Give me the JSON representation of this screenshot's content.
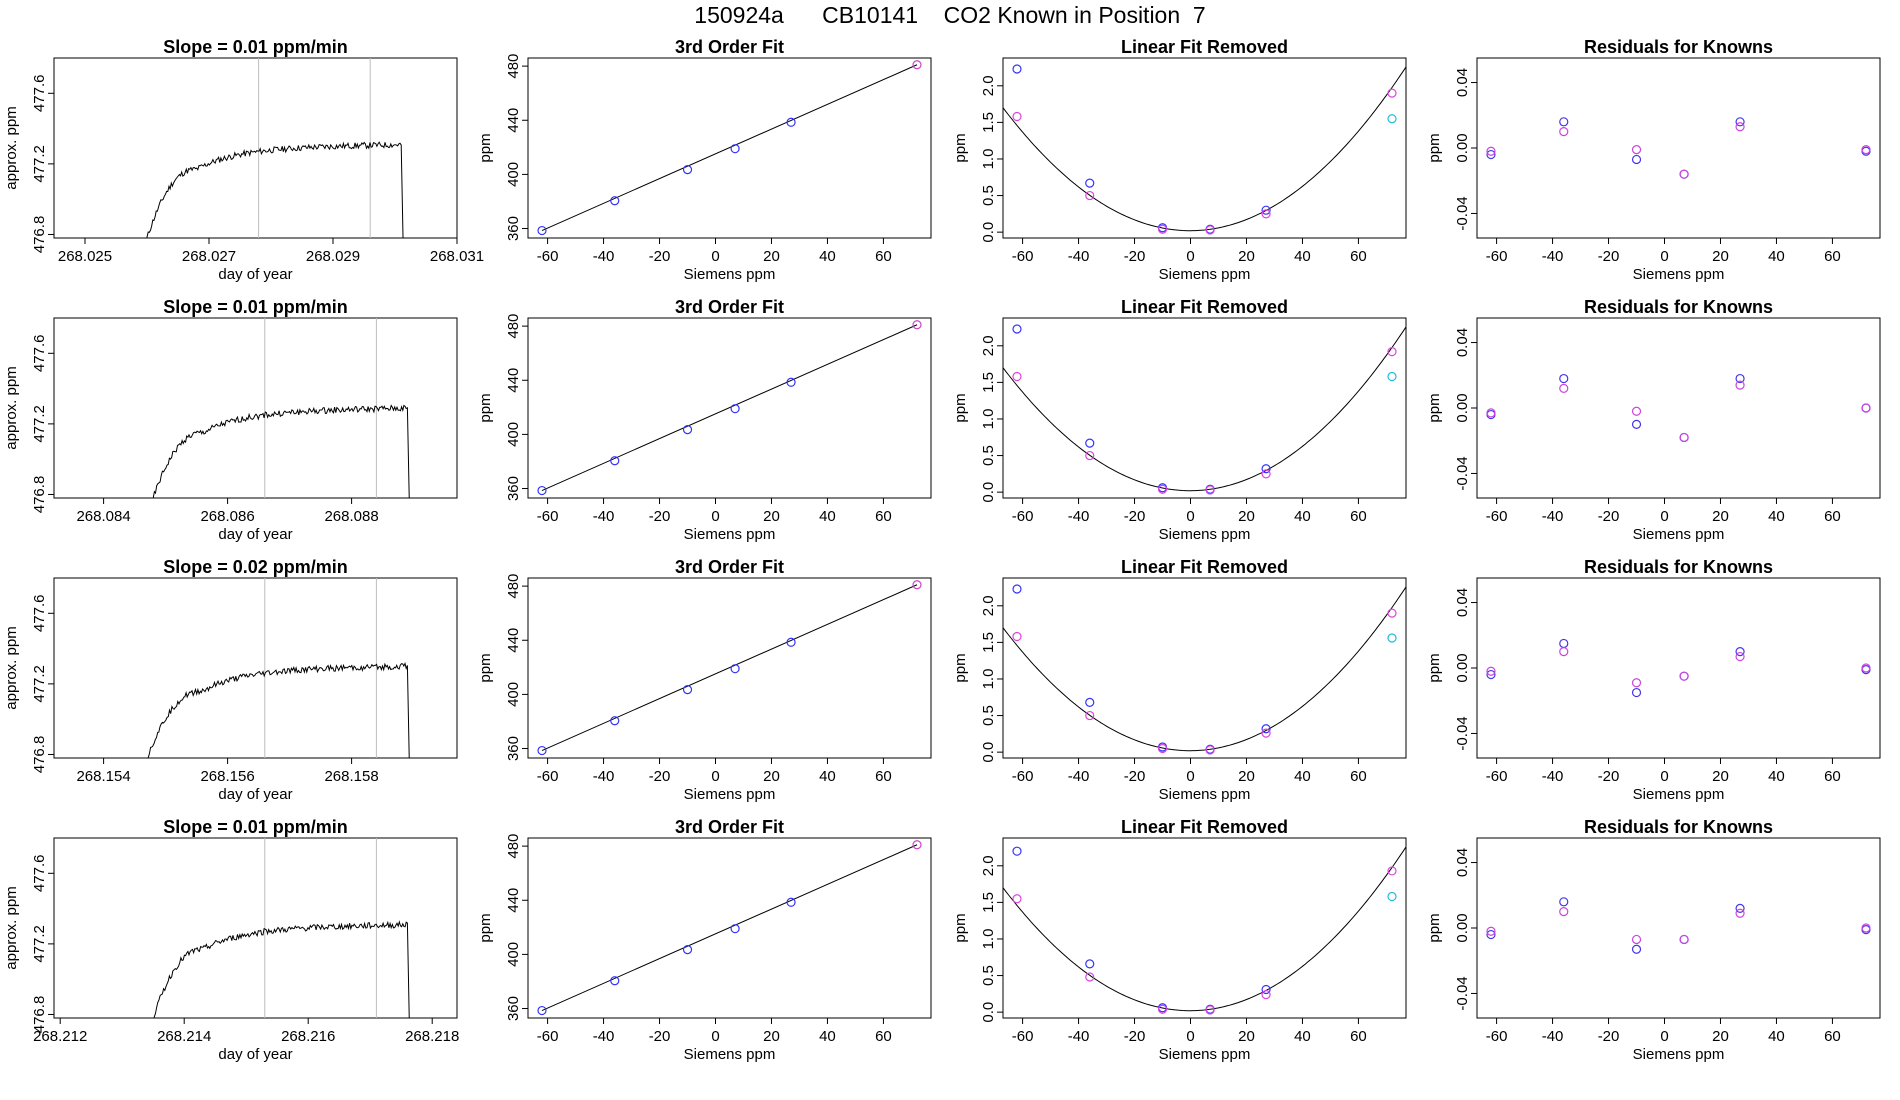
{
  "main_title": "150924a      CB10141    CO2 Known in Position  7",
  "chart_data": [
    {
      "id": "r1c1",
      "type": "line",
      "title": "Slope =  0.01  ppm/min",
      "xlabel": "day of year",
      "ylabel": "approx. ppm",
      "xlim": [
        268.0245,
        268.031
      ],
      "ylim": [
        476.78,
        477.8
      ],
      "xticks": [
        268.025,
        268.027,
        268.029,
        268.031
      ],
      "xtick_labels": [
        "268.025",
        "268.027",
        "268.029",
        "268.031"
      ],
      "yticks": [
        476.8,
        477.2,
        477.6
      ],
      "ytick_labels": [
        "476.8",
        "477.2",
        "477.6"
      ],
      "vlines": [
        268.0278,
        268.0296
      ],
      "rise_start": 268.026,
      "rise_end": 268.0268,
      "plateau_end": 268.0301,
      "start_value": 476.78,
      "plateau_value": 477.29
    },
    {
      "id": "r1c2",
      "type": "line",
      "title": "3rd Order Fit",
      "xlabel": "Siemens ppm",
      "ylabel": "ppm",
      "xlim": [
        -67,
        77
      ],
      "ylim": [
        353,
        486
      ],
      "xticks": [
        -60,
        -40,
        -20,
        0,
        20,
        40,
        60
      ],
      "xtick_labels": [
        "-60",
        "-40",
        "-20",
        "0",
        "20",
        "40",
        "60"
      ],
      "yticks": [
        360,
        400,
        440,
        480
      ],
      "ytick_labels": [
        "360",
        "400",
        "440",
        "480"
      ],
      "points_x": [
        -62,
        -36,
        -10,
        7,
        27,
        72
      ],
      "points_y": [
        358.5,
        380.5,
        403.5,
        419,
        438.5,
        481
      ],
      "point_colors": [
        "#3333ff",
        "#3333ff",
        "#3333ff",
        "#3333ff",
        "#3333ff",
        "#cc44cc"
      ]
    },
    {
      "id": "r1c3",
      "type": "scatter",
      "title": "Linear Fit Removed",
      "xlabel": "Siemens ppm",
      "ylabel": "ppm",
      "xlim": [
        -67,
        77
      ],
      "ylim": [
        -0.08,
        2.38
      ],
      "xticks": [
        -60,
        -40,
        -20,
        0,
        20,
        40,
        60
      ],
      "xtick_labels": [
        "-60",
        "-40",
        "-20",
        "0",
        "20",
        "40",
        "60"
      ],
      "yticks": [
        0,
        0.5,
        1,
        1.5,
        2
      ],
      "ytick_labels": [
        "0.0",
        "0.5",
        "1.0",
        "1.5",
        "2.0"
      ],
      "curve_coeffs": [
        0.02,
        0.00011,
        0.000376
      ],
      "series": [
        {
          "name": "blue",
          "color": "#3333ff",
          "x": [
            -62,
            -36,
            -10,
            7,
            27
          ],
          "y": [
            2.23,
            0.67,
            0.06,
            0.04,
            0.3
          ]
        },
        {
          "name": "magenta",
          "color": "#dd44dd",
          "x": [
            -62,
            -36,
            -10,
            7,
            27,
            72
          ],
          "y": [
            1.58,
            0.5,
            0.04,
            0.03,
            0.25,
            1.9
          ]
        },
        {
          "name": "cyan",
          "color": "#22bbdd",
          "x": [
            72
          ],
          "y": [
            1.55
          ]
        }
      ]
    },
    {
      "id": "r1c4",
      "type": "scatter",
      "title": "Residuals for Knowns",
      "xlabel": "Siemens ppm",
      "ylabel": "ppm",
      "xlim": [
        -67,
        77
      ],
      "ylim": [
        -0.055,
        0.055
      ],
      "xticks": [
        -60,
        -40,
        -20,
        0,
        20,
        40,
        60
      ],
      "xtick_labels": [
        "-60",
        "-40",
        "-20",
        "0",
        "20",
        "40",
        "60"
      ],
      "yticks": [
        -0.04,
        0,
        0.04
      ],
      "ytick_labels": [
        "-0.04",
        "0.00",
        "0.04"
      ],
      "series": [
        {
          "name": "blue",
          "color": "#4433ee",
          "x": [
            -62,
            -36,
            -10,
            7,
            27,
            72
          ],
          "y": [
            -0.004,
            0.016,
            -0.007,
            -0.016,
            0.016,
            -0.002
          ]
        },
        {
          "name": "magenta",
          "color": "#cc44dd",
          "x": [
            -62,
            -36,
            -10,
            7,
            27,
            72
          ],
          "y": [
            -0.002,
            0.01,
            -0.001,
            -0.016,
            0.013,
            -0.001
          ]
        }
      ]
    },
    {
      "id": "r2c1",
      "type": "line",
      "title": "Slope =  0.01  ppm/min",
      "xlabel": "day of year",
      "ylabel": "approx. ppm",
      "xlim": [
        268.0832,
        268.0897
      ],
      "ylim": [
        476.78,
        477.8
      ],
      "xticks": [
        268.084,
        268.086,
        268.088
      ],
      "xtick_labels": [
        "268.084",
        "268.086",
        "268.088"
      ],
      "yticks": [
        476.8,
        477.2,
        477.6
      ],
      "ytick_labels": [
        "476.8",
        "477.2",
        "477.6"
      ],
      "vlines": [
        268.0866,
        268.0884
      ],
      "rise_start": 268.0848,
      "rise_end": 268.0856,
      "plateau_end": 268.0889,
      "start_value": 476.78,
      "plateau_value": 477.27
    },
    {
      "id": "r2c2",
      "type": "line",
      "title": "3rd Order Fit",
      "xlabel": "Siemens ppm",
      "ylabel": "ppm",
      "xlim": [
        -67,
        77
      ],
      "ylim": [
        353,
        486
      ],
      "xticks": [
        -60,
        -40,
        -20,
        0,
        20,
        40,
        60
      ],
      "xtick_labels": [
        "-60",
        "-40",
        "-20",
        "0",
        "20",
        "40",
        "60"
      ],
      "yticks": [
        360,
        400,
        440,
        480
      ],
      "ytick_labels": [
        "360",
        "400",
        "440",
        "480"
      ],
      "points_x": [
        -62,
        -36,
        -10,
        7,
        27,
        72
      ],
      "points_y": [
        358.5,
        380.5,
        403.5,
        419,
        438.5,
        481
      ],
      "point_colors": [
        "#3333ff",
        "#3333ff",
        "#3333ff",
        "#3333ff",
        "#3333ff",
        "#cc44cc"
      ]
    },
    {
      "id": "r2c3",
      "type": "scatter",
      "title": "Linear Fit Removed",
      "xlabel": "Siemens ppm",
      "ylabel": "ppm",
      "xlim": [
        -67,
        77
      ],
      "ylim": [
        -0.08,
        2.38
      ],
      "xticks": [
        -60,
        -40,
        -20,
        0,
        20,
        40,
        60
      ],
      "xtick_labels": [
        "-60",
        "-40",
        "-20",
        "0",
        "20",
        "40",
        "60"
      ],
      "yticks": [
        0,
        0.5,
        1,
        1.5,
        2
      ],
      "ytick_labels": [
        "0.0",
        "0.5",
        "1.0",
        "1.5",
        "2.0"
      ],
      "curve_coeffs": [
        0.02,
        0.00011,
        0.000376
      ],
      "series": [
        {
          "name": "blue",
          "color": "#3333ff",
          "x": [
            -62,
            -36,
            -10,
            7,
            27
          ],
          "y": [
            2.23,
            0.67,
            0.06,
            0.04,
            0.32
          ]
        },
        {
          "name": "magenta",
          "color": "#dd44dd",
          "x": [
            -62,
            -36,
            -10,
            7,
            27,
            72
          ],
          "y": [
            1.58,
            0.5,
            0.04,
            0.03,
            0.25,
            1.92
          ]
        },
        {
          "name": "cyan",
          "color": "#22bbdd",
          "x": [
            72
          ],
          "y": [
            1.58
          ]
        }
      ]
    },
    {
      "id": "r2c4",
      "type": "scatter",
      "title": "Residuals for Knowns",
      "xlabel": "Siemens ppm",
      "ylabel": "ppm",
      "xlim": [
        -67,
        77
      ],
      "ylim": [
        -0.055,
        0.055
      ],
      "xticks": [
        -60,
        -40,
        -20,
        0,
        20,
        40,
        60
      ],
      "xtick_labels": [
        "-60",
        "-40",
        "-20",
        "0",
        "20",
        "40",
        "60"
      ],
      "yticks": [
        -0.04,
        0,
        0.04
      ],
      "ytick_labels": [
        "-0.04",
        "0.00",
        "0.04"
      ],
      "series": [
        {
          "name": "blue",
          "color": "#4433ee",
          "x": [
            -62,
            -36,
            -10,
            7,
            27,
            72
          ],
          "y": [
            -0.004,
            0.018,
            -0.01,
            -0.018,
            0.018,
            0
          ]
        },
        {
          "name": "magenta",
          "color": "#cc44dd",
          "x": [
            -62,
            -36,
            -10,
            7,
            27,
            72
          ],
          "y": [
            -0.003,
            0.012,
            -0.002,
            -0.018,
            0.014,
            0
          ]
        }
      ]
    },
    {
      "id": "r3c1",
      "type": "line",
      "title": "Slope =  0.02  ppm/min",
      "xlabel": "day of year",
      "ylabel": "approx. ppm",
      "xlim": [
        268.1532,
        268.1597
      ],
      "ylim": [
        476.78,
        477.8
      ],
      "xticks": [
        268.154,
        268.156,
        268.158
      ],
      "xtick_labels": [
        "268.154",
        "268.156",
        "268.158"
      ],
      "yticks": [
        476.8,
        477.2,
        477.6
      ],
      "ytick_labels": [
        "476.8",
        "477.2",
        "477.6"
      ],
      "vlines": [
        268.1566,
        268.1584
      ],
      "rise_start": 268.1547,
      "rise_end": 268.1556,
      "plateau_end": 268.1589,
      "start_value": 476.78,
      "plateau_value": 477.28
    },
    {
      "id": "r3c2",
      "type": "line",
      "title": "3rd Order Fit",
      "xlabel": "Siemens ppm",
      "ylabel": "ppm",
      "xlim": [
        -67,
        77
      ],
      "ylim": [
        353,
        486
      ],
      "xticks": [
        -60,
        -40,
        -20,
        0,
        20,
        40,
        60
      ],
      "xtick_labels": [
        "-60",
        "-40",
        "-20",
        "0",
        "20",
        "40",
        "60"
      ],
      "yticks": [
        360,
        400,
        440,
        480
      ],
      "ytick_labels": [
        "360",
        "400",
        "440",
        "480"
      ],
      "points_x": [
        -62,
        -36,
        -10,
        7,
        27,
        72
      ],
      "points_y": [
        358.5,
        380.5,
        403.5,
        419,
        438.5,
        481
      ],
      "point_colors": [
        "#3333ff",
        "#3333ff",
        "#3333ff",
        "#3333ff",
        "#3333ff",
        "#cc44cc"
      ]
    },
    {
      "id": "r3c3",
      "type": "scatter",
      "title": "Linear Fit Removed",
      "xlabel": "Siemens ppm",
      "ylabel": "ppm",
      "xlim": [
        -67,
        77
      ],
      "ylim": [
        -0.08,
        2.38
      ],
      "xticks": [
        -60,
        -40,
        -20,
        0,
        20,
        40,
        60
      ],
      "xtick_labels": [
        "-60",
        "-40",
        "-20",
        "0",
        "20",
        "40",
        "60"
      ],
      "yticks": [
        0,
        0.5,
        1,
        1.5,
        2
      ],
      "ytick_labels": [
        "0.0",
        "0.5",
        "1.0",
        "1.5",
        "2.0"
      ],
      "curve_coeffs": [
        0.02,
        0.00011,
        0.000376
      ],
      "series": [
        {
          "name": "blue",
          "color": "#3333ff",
          "x": [
            -62,
            -36,
            -10,
            7,
            27
          ],
          "y": [
            2.23,
            0.68,
            0.07,
            0.04,
            0.32
          ]
        },
        {
          "name": "magenta",
          "color": "#dd44dd",
          "x": [
            -62,
            -36,
            -10,
            7,
            27,
            72
          ],
          "y": [
            1.58,
            0.5,
            0.05,
            0.03,
            0.26,
            1.9
          ]
        },
        {
          "name": "cyan",
          "color": "#22bbdd",
          "x": [
            72
          ],
          "y": [
            1.56
          ]
        }
      ]
    },
    {
      "id": "r3c4",
      "type": "scatter",
      "title": "Residuals for Knowns",
      "xlabel": "Siemens ppm",
      "ylabel": "ppm",
      "xlim": [
        -67,
        77
      ],
      "ylim": [
        -0.055,
        0.055
      ],
      "xticks": [
        -60,
        -40,
        -20,
        0,
        20,
        40,
        60
      ],
      "xtick_labels": [
        "-60",
        "-40",
        "-20",
        "0",
        "20",
        "40",
        "60"
      ],
      "yticks": [
        -0.04,
        0,
        0.04
      ],
      "ytick_labels": [
        "-0.04",
        "0.00",
        "0.04"
      ],
      "series": [
        {
          "name": "blue",
          "color": "#4433ee",
          "x": [
            -62,
            -36,
            -10,
            7,
            27,
            72
          ],
          "y": [
            -0.004,
            0.015,
            -0.015,
            -0.005,
            0.01,
            -0.001
          ]
        },
        {
          "name": "magenta",
          "color": "#cc44dd",
          "x": [
            -62,
            -36,
            -10,
            7,
            27,
            72
          ],
          "y": [
            -0.002,
            0.01,
            -0.009,
            -0.005,
            0.007,
            0
          ]
        }
      ]
    },
    {
      "id": "r4c1",
      "type": "line",
      "title": "Slope =  0.01  ppm/min",
      "xlabel": "day of year",
      "ylabel": "approx. ppm",
      "xlim": [
        268.2119,
        268.2184
      ],
      "ylim": [
        476.78,
        477.8
      ],
      "xticks": [
        268.212,
        268.214,
        268.216,
        268.218
      ],
      "xtick_labels": [
        "268.212",
        "268.214",
        "268.216",
        "268.218"
      ],
      "yticks": [
        476.8,
        477.2,
        477.6
      ],
      "ytick_labels": [
        "476.8",
        "477.2",
        "477.6"
      ],
      "vlines": [
        268.2153,
        268.2171
      ],
      "rise_start": 268.2135,
      "rise_end": 268.2143,
      "plateau_end": 268.2176,
      "start_value": 476.78,
      "plateau_value": 477.29
    },
    {
      "id": "r4c2",
      "type": "line",
      "title": "3rd Order Fit",
      "xlabel": "Siemens ppm",
      "ylabel": "ppm",
      "xlim": [
        -67,
        77
      ],
      "ylim": [
        353,
        486
      ],
      "xticks": [
        -60,
        -40,
        -20,
        0,
        20,
        40,
        60
      ],
      "xtick_labels": [
        "-60",
        "-40",
        "-20",
        "0",
        "20",
        "40",
        "60"
      ],
      "yticks": [
        360,
        400,
        440,
        480
      ],
      "ytick_labels": [
        "360",
        "400",
        "440",
        "480"
      ],
      "points_x": [
        -62,
        -36,
        -10,
        7,
        27,
        72
      ],
      "points_y": [
        358.5,
        380.5,
        403.5,
        419,
        438.5,
        481
      ],
      "point_colors": [
        "#3333ff",
        "#3333ff",
        "#3333ff",
        "#3333ff",
        "#3333ff",
        "#cc44cc"
      ]
    },
    {
      "id": "r4c3",
      "type": "scatter",
      "title": "Linear Fit Removed",
      "xlabel": "Siemens ppm",
      "ylabel": "ppm",
      "xlim": [
        -67,
        77
      ],
      "ylim": [
        -0.08,
        2.38
      ],
      "xticks": [
        -60,
        -40,
        -20,
        0,
        20,
        40,
        60
      ],
      "xtick_labels": [
        "-60",
        "-40",
        "-20",
        "0",
        "20",
        "40",
        "60"
      ],
      "yticks": [
        0,
        0.5,
        1,
        1.5,
        2
      ],
      "ytick_labels": [
        "0.0",
        "0.5",
        "1.0",
        "1.5",
        "2.0"
      ],
      "curve_coeffs": [
        0.02,
        0.00011,
        0.000376
      ],
      "series": [
        {
          "name": "blue",
          "color": "#3333ff",
          "x": [
            -62,
            -36,
            -10,
            7,
            27
          ],
          "y": [
            2.2,
            0.66,
            0.06,
            0.04,
            0.31
          ]
        },
        {
          "name": "magenta",
          "color": "#dd44dd",
          "x": [
            -62,
            -36,
            -10,
            7,
            27,
            72
          ],
          "y": [
            1.55,
            0.48,
            0.04,
            0.03,
            0.24,
            1.93
          ]
        },
        {
          "name": "cyan",
          "color": "#22bbdd",
          "x": [
            72
          ],
          "y": [
            1.58
          ]
        }
      ]
    },
    {
      "id": "r4c4",
      "type": "scatter",
      "title": "Residuals for Knowns",
      "xlabel": "Siemens ppm",
      "ylabel": "ppm",
      "xlim": [
        -67,
        77
      ],
      "ylim": [
        -0.055,
        0.055
      ],
      "xticks": [
        -60,
        -40,
        -20,
        0,
        20,
        40,
        60
      ],
      "xtick_labels": [
        "-60",
        "-40",
        "-20",
        "0",
        "20",
        "40",
        "60"
      ],
      "yticks": [
        -0.04,
        0,
        0.04
      ],
      "ytick_labels": [
        "-0.04",
        "0.00",
        "0.04"
      ],
      "series": [
        {
          "name": "blue",
          "color": "#4433ee",
          "x": [
            -62,
            -36,
            -10,
            7,
            27,
            72
          ],
          "y": [
            -0.004,
            0.016,
            -0.013,
            -0.007,
            0.012,
            -0.001
          ]
        },
        {
          "name": "magenta",
          "color": "#cc44dd",
          "x": [
            -62,
            -36,
            -10,
            7,
            27,
            72
          ],
          "y": [
            -0.002,
            0.01,
            -0.007,
            -0.007,
            0.009,
            0
          ]
        }
      ]
    }
  ]
}
